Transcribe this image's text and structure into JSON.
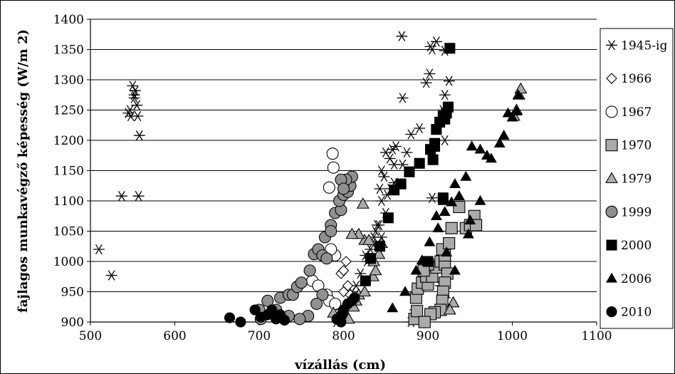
{
  "chart_data": {
    "type": "scatter",
    "title": "",
    "xlabel": "vízállás (cm)",
    "ylabel": "fajlagos munkavégző képesség (W/m 2)",
    "xlim": [
      500,
      1100
    ],
    "ylim": [
      900,
      1400
    ],
    "x_ticks": [
      "500",
      "600",
      "700",
      "800",
      "900",
      "1000",
      "1100"
    ],
    "y_ticks": [
      "900",
      "950",
      "1000",
      "1050",
      "1100",
      "1150",
      "1200",
      "1250",
      "1300",
      "1350",
      "1400"
    ],
    "grid": "horizontal",
    "legend_position": "right",
    "series": [
      {
        "name": "1945-ig",
        "marker": "asterisk",
        "color": "#000000",
        "points": [
          [
            510,
            1020
          ],
          [
            525,
            977
          ],
          [
            537,
            1108
          ],
          [
            557,
            1108
          ],
          [
            545,
            1245
          ],
          [
            548,
            1240
          ],
          [
            550,
            1290
          ],
          [
            552,
            1275
          ],
          [
            555,
            1258
          ],
          [
            556,
            1240
          ],
          [
            552,
            1270
          ],
          [
            547,
            1250
          ],
          [
            558,
            1208
          ],
          [
            553,
            1282
          ],
          [
            869,
            1372
          ],
          [
            903,
            1355
          ],
          [
            910,
            1363
          ],
          [
            905,
            1350
          ],
          [
            920,
            1348
          ],
          [
            898,
            1295
          ],
          [
            902,
            1310
          ],
          [
            925,
            1298
          ],
          [
            920,
            1275
          ],
          [
            918,
            1250
          ],
          [
            870,
            1270
          ],
          [
            880,
            1210
          ],
          [
            890,
            1220
          ],
          [
            920,
            1200
          ],
          [
            905,
            1105
          ],
          [
            845,
            1150
          ],
          [
            850,
            1180
          ],
          [
            855,
            1170
          ],
          [
            858,
            1185
          ],
          [
            862,
            1190
          ],
          [
            860,
            1160
          ],
          [
            848,
            1140
          ],
          [
            843,
            1120
          ],
          [
            845,
            1100
          ],
          [
            850,
            1080
          ],
          [
            842,
            1060
          ],
          [
            838,
            1050
          ],
          [
            836,
            1040
          ],
          [
            834,
            1030
          ],
          [
            832,
            1020
          ],
          [
            828,
            1000
          ],
          [
            826,
            1010
          ],
          [
            820,
            980
          ],
          [
            815,
            960
          ],
          [
            810,
            950
          ],
          [
            805,
            930
          ],
          [
            798,
            920
          ],
          [
            790,
            910
          ],
          [
            792,
            900
          ],
          [
            800,
            920
          ],
          [
            880,
            900
          ],
          [
            885,
            920
          ],
          [
            918,
            920
          ],
          [
            920,
            940
          ],
          [
            915,
            960
          ],
          [
            840,
            1060
          ],
          [
            845,
            1040
          ],
          [
            852,
            1110
          ],
          [
            856,
            1120
          ],
          [
            860,
            1130
          ],
          [
            870,
            1160
          ],
          [
            875,
            1180
          ]
        ]
      },
      {
        "name": "1966",
        "marker": "diamond",
        "color": "#ffffff",
        "points": [
          [
            797,
            980
          ],
          [
            800,
            985
          ],
          [
            803,
            1000
          ],
          [
            805,
            960
          ],
          [
            800,
            950
          ],
          [
            808,
            945
          ],
          [
            812,
            940
          ]
        ]
      },
      {
        "name": "1967",
        "marker": "circle-open",
        "color": "#ffffff",
        "points": [
          [
            787,
            1178
          ],
          [
            788,
            1155
          ],
          [
            783,
            1122
          ],
          [
            790,
            1010
          ],
          [
            785,
            1020
          ],
          [
            763,
            968
          ],
          [
            770,
            960
          ],
          [
            780,
            945
          ],
          [
            783,
            935
          ],
          [
            790,
            930
          ]
        ]
      },
      {
        "name": "1970",
        "marker": "square",
        "color": "#aaaaaa",
        "points": [
          [
            884,
            905
          ],
          [
            887,
            918
          ],
          [
            886,
            940
          ],
          [
            888,
            955
          ],
          [
            893,
            965
          ],
          [
            900,
            962
          ],
          [
            898,
            975
          ],
          [
            905,
            975
          ],
          [
            910,
            990
          ],
          [
            915,
            1000
          ],
          [
            920,
            995
          ],
          [
            923,
            980
          ],
          [
            920,
            965
          ],
          [
            918,
            950
          ],
          [
            917,
            935
          ],
          [
            915,
            920
          ],
          [
            908,
            916
          ],
          [
            903,
            913
          ],
          [
            896,
            900
          ],
          [
            920,
            1010
          ],
          [
            917,
            1020
          ],
          [
            925,
            1030
          ],
          [
            928,
            1055
          ],
          [
            937,
            1090
          ],
          [
            945,
            1055
          ],
          [
            950,
            1060
          ],
          [
            955,
            1075
          ],
          [
            957,
            1060
          ],
          [
            900,
            995
          ],
          [
            895,
            985
          ]
        ]
      },
      {
        "name": "1979",
        "marker": "triangle",
        "color": "#aaaaaa",
        "points": [
          [
            788,
            915
          ],
          [
            795,
            905
          ],
          [
            800,
            920
          ],
          [
            806,
            905
          ],
          [
            812,
            925
          ],
          [
            815,
            935
          ],
          [
            818,
            945
          ],
          [
            825,
            950
          ],
          [
            835,
            975
          ],
          [
            838,
            985
          ],
          [
            836,
            1000
          ],
          [
            825,
            1035
          ],
          [
            830,
            1035
          ],
          [
            818,
            1045
          ],
          [
            810,
            1045
          ],
          [
            823,
            1095
          ],
          [
            842,
            1012
          ],
          [
            845,
            1030
          ],
          [
            1002,
            1240
          ],
          [
            1005,
            1250
          ],
          [
            1008,
            1275
          ],
          [
            1010,
            1285
          ],
          [
            930,
            932
          ],
          [
            926,
            920
          ]
        ]
      },
      {
        "name": "1999",
        "marker": "circle",
        "color": "#909090",
        "points": [
          [
            702,
            905
          ],
          [
            700,
            920
          ],
          [
            710,
            935
          ],
          [
            725,
            940
          ],
          [
            735,
            945
          ],
          [
            740,
            945
          ],
          [
            745,
            958
          ],
          [
            750,
            965
          ],
          [
            760,
            985
          ],
          [
            765,
            1012
          ],
          [
            770,
            1020
          ],
          [
            775,
            1010
          ],
          [
            780,
            1005
          ],
          [
            778,
            1040
          ],
          [
            785,
            1060
          ],
          [
            790,
            1080
          ],
          [
            797,
            1085
          ],
          [
            795,
            1100
          ],
          [
            800,
            1110
          ],
          [
            805,
            1115
          ],
          [
            808,
            1125
          ],
          [
            810,
            1140
          ],
          [
            803,
            1135
          ],
          [
            797,
            1135
          ],
          [
            800,
            1120
          ],
          [
            785,
            1050
          ],
          [
            775,
            945
          ],
          [
            768,
            930
          ],
          [
            758,
            910
          ],
          [
            748,
            905
          ],
          [
            735,
            910
          ],
          [
            720,
            920
          ]
        ]
      },
      {
        "name": "2000",
        "marker": "square",
        "color": "#000000",
        "points": [
          [
            926,
            1352
          ],
          [
            924,
            1255
          ],
          [
            922,
            1245
          ],
          [
            918,
            1240
          ],
          [
            914,
            1230
          ],
          [
            910,
            1218
          ],
          [
            908,
            1195
          ],
          [
            903,
            1185
          ],
          [
            906,
            1168
          ],
          [
            890,
            1162
          ],
          [
            878,
            1148
          ],
          [
            868,
            1128
          ],
          [
            860,
            1118
          ],
          [
            853,
            1072
          ],
          [
            843,
            1025
          ],
          [
            832,
            1005
          ],
          [
            826,
            968
          ],
          [
            918,
            1105
          ],
          [
            900,
            1000
          ],
          [
            908,
            1190
          ],
          [
            920,
            1235
          ]
        ]
      },
      {
        "name": "2006",
        "marker": "triangle",
        "color": "#000000",
        "points": [
          [
            858,
            923
          ],
          [
            873,
            950
          ],
          [
            886,
            985
          ],
          [
            893,
            1002
          ],
          [
            902,
            1032
          ],
          [
            912,
            1055
          ],
          [
            920,
            1082
          ],
          [
            918,
            1100
          ],
          [
            928,
            1098
          ],
          [
            932,
            1128
          ],
          [
            937,
            1108
          ],
          [
            945,
            1140
          ],
          [
            950,
            1068
          ],
          [
            948,
            1045
          ],
          [
            952,
            1190
          ],
          [
            962,
            1185
          ],
          [
            970,
            1175
          ],
          [
            975,
            1170
          ],
          [
            985,
            1195
          ],
          [
            990,
            1208
          ],
          [
            995,
            1245
          ],
          [
            1000,
            1238
          ],
          [
            1005,
            1248
          ],
          [
            1007,
            1275
          ],
          [
            962,
            1100
          ],
          [
            932,
            985
          ],
          [
            922,
            1015
          ],
          [
            910,
            1075
          ]
        ]
      },
      {
        "name": "2010",
        "marker": "circle",
        "color": "#000000",
        "points": [
          [
            665,
            907
          ],
          [
            678,
            900
          ],
          [
            695,
            920
          ],
          [
            702,
            908
          ],
          [
            710,
            912
          ],
          [
            715,
            920
          ],
          [
            720,
            905
          ],
          [
            725,
            912
          ],
          [
            730,
            903
          ],
          [
            792,
            905
          ],
          [
            797,
            900
          ],
          [
            800,
            920
          ],
          [
            805,
            930
          ],
          [
            810,
            935
          ],
          [
            813,
            940
          ],
          [
            798,
            912
          ]
        ]
      }
    ]
  }
}
